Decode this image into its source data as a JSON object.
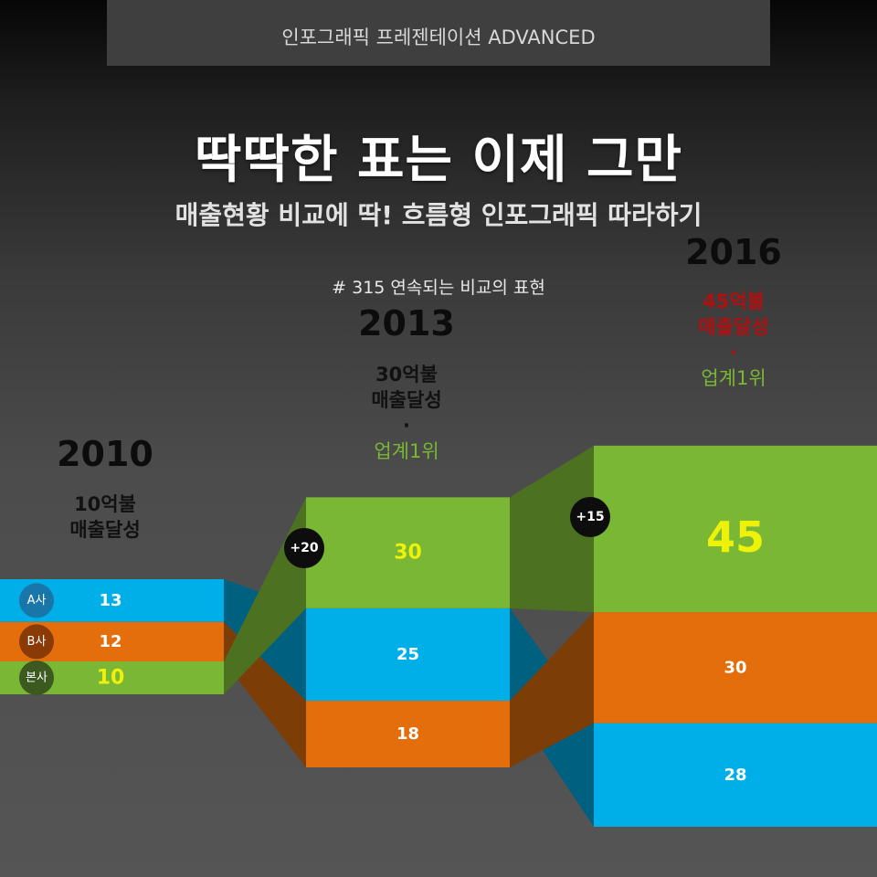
{
  "header": {
    "banner": "인포그래픽 프레젠테이션 ADVANCED"
  },
  "title": "딱딱한 표는 이제 그만",
  "subtitle": "매출현황 비교에 딱! 흐름형 인포그래픽 따라하기",
  "series_label": "# 315 연속되는 비교의 표현",
  "colors": {
    "A": "#00aee8",
    "B": "#e46e0c",
    "own": "#7ab734",
    "highlight": "#eef20a",
    "red": "#b01010"
  },
  "columns": [
    {
      "year": "2010",
      "note": [
        "10억불",
        "매출달성"
      ],
      "rank": ""
    },
    {
      "year": "2013",
      "note": [
        "30억불",
        "매출달성"
      ],
      "dot": "·",
      "rank": "업계1위"
    },
    {
      "year": "2016",
      "note": [
        "45억불",
        "매출달성"
      ],
      "dot": "·",
      "rank": "업계1위"
    }
  ],
  "chart_data": {
    "type": "bar",
    "categories": [
      "2010",
      "2013",
      "2016"
    ],
    "series": [
      {
        "name": "A사",
        "values": [
          13,
          25,
          28
        ]
      },
      {
        "name": "B사",
        "values": [
          12,
          18,
          30
        ]
      },
      {
        "name": "본사",
        "values": [
          10,
          30,
          45
        ]
      }
    ],
    "increments": [
      "+20",
      "+15"
    ],
    "unit": "억불"
  }
}
